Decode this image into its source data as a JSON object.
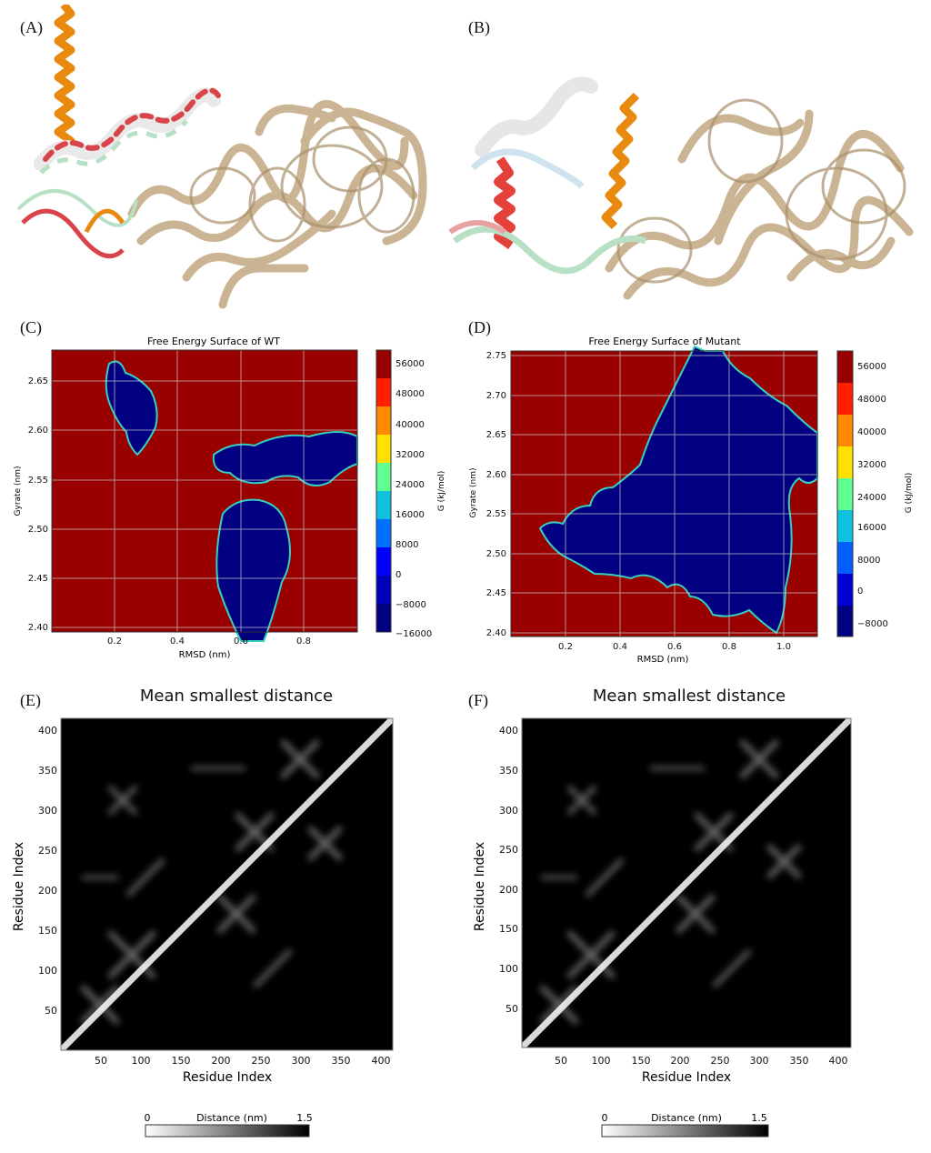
{
  "panels": {
    "a": {
      "letter": "(A)"
    },
    "b": {
      "letter": "(B)"
    },
    "c": {
      "letter": "(C)"
    },
    "d": {
      "letter": "(D)"
    },
    "e": {
      "letter": "(E)"
    },
    "f": {
      "letter": "(F)"
    }
  },
  "colors": {
    "protein_body": "#c9b18e",
    "helix_orange": "#e98a10",
    "helix_red": "#d9444a",
    "helix_white": "#eeeeee",
    "helix_mint": "#b7e0c5",
    "fes_high": "#990000",
    "fes_low": "#000080"
  },
  "chart_data": [
    {
      "type": "heatmap",
      "id": "C",
      "title": "Free Energy Surface of WT",
      "xlabel": "RMSD (nm)",
      "ylabel": "Gyrate (nm)",
      "xlim": [
        0.0,
        0.97
      ],
      "ylim": [
        2.39,
        2.675
      ],
      "xticks": [
        "0.2",
        "0.4",
        "0.6",
        "0.8"
      ],
      "yticks": [
        "2.40",
        "2.45",
        "2.50",
        "2.55",
        "2.60",
        "2.65"
      ],
      "grid": true,
      "colorbar": {
        "label": "G (kJ/mol)",
        "ticks": [
          "56000",
          "48000",
          "40000",
          "32000",
          "24000",
          "16000",
          "8000",
          "0",
          "−8000",
          "−16000"
        ]
      }
    },
    {
      "type": "heatmap",
      "id": "D",
      "title": "Free Energy Surface of Mutant",
      "xlabel": "RMSD (nm)",
      "ylabel": "Gyrate (nm)",
      "xlim": [
        0.0,
        1.12
      ],
      "ylim": [
        2.395,
        2.755
      ],
      "xticks": [
        "0.2",
        "0.4",
        "0.6",
        "0.8",
        "1.0"
      ],
      "yticks": [
        "2.40",
        "2.45",
        "2.50",
        "2.55",
        "2.60",
        "2.65",
        "2.70",
        "2.75"
      ],
      "grid": true,
      "colorbar": {
        "label": "G (kJ/mol)",
        "ticks": [
          "56000",
          "48000",
          "40000",
          "32000",
          "24000",
          "16000",
          "8000",
          "0",
          "−8000"
        ]
      }
    },
    {
      "type": "heatmap",
      "id": "E",
      "title": "Mean smallest distance",
      "xlabel": "Residue Index",
      "ylabel": "Residue Index",
      "xlim": [
        0,
        415
      ],
      "ylim": [
        0,
        415
      ],
      "xticks": [
        "50",
        "100",
        "150",
        "200",
        "250",
        "300",
        "350",
        "400"
      ],
      "yticks": [
        "50",
        "100",
        "150",
        "200",
        "250",
        "300",
        "350",
        "400"
      ],
      "colorbar": {
        "label": "Distance (nm)",
        "min": "0",
        "max": "1.5"
      }
    },
    {
      "type": "heatmap",
      "id": "F",
      "title": "Mean smallest distance",
      "xlabel": "Residue Index",
      "ylabel": "Residue Index",
      "xlim": [
        0,
        415
      ],
      "ylim": [
        0,
        415
      ],
      "xticks": [
        "50",
        "100",
        "150",
        "200",
        "250",
        "300",
        "350",
        "400"
      ],
      "yticks": [
        "50",
        "100",
        "150",
        "200",
        "250",
        "300",
        "350",
        "400"
      ],
      "colorbar": {
        "label": "Distance (nm)",
        "min": "0",
        "max": "1.5"
      }
    }
  ]
}
